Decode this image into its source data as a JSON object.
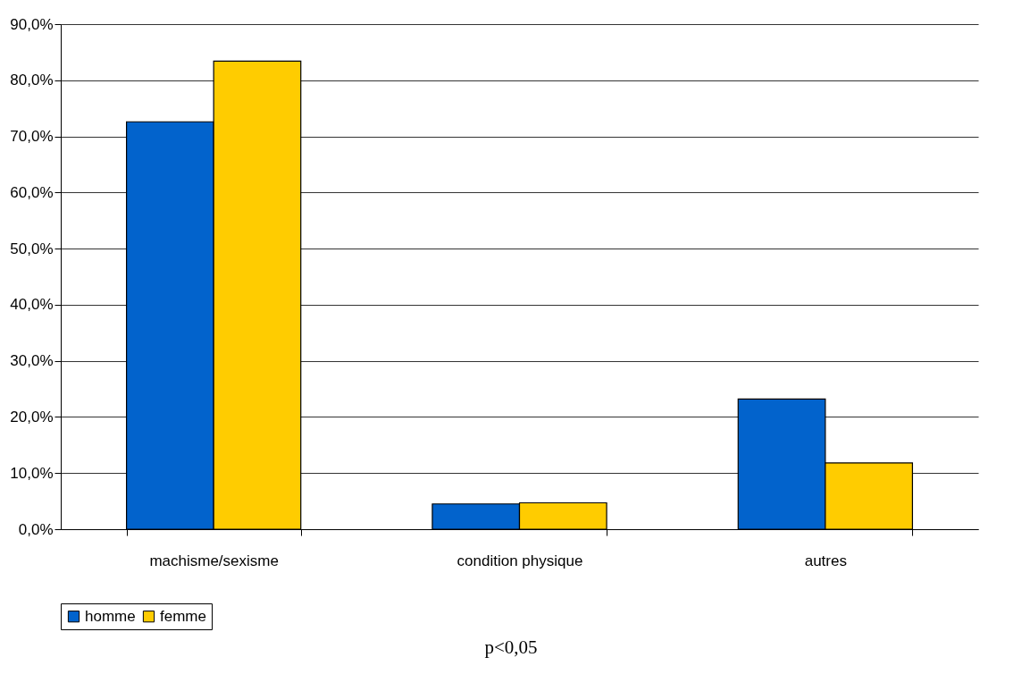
{
  "chart_data": {
    "type": "bar",
    "categories": [
      "machisme/sexisme",
      "condition physique",
      "autres"
    ],
    "series": [
      {
        "name": "homme",
        "color": "#0263cc",
        "values": [
          72.6,
          4.5,
          23.2
        ]
      },
      {
        "name": "femme",
        "color": "#ffcc00",
        "values": [
          83.4,
          4.7,
          11.8
        ]
      }
    ],
    "ylim": [
      0,
      90
    ],
    "yticks": [
      {
        "value": 0,
        "label": "0,0%"
      },
      {
        "value": 10,
        "label": "10,0%"
      },
      {
        "value": 20,
        "label": "20,0%"
      },
      {
        "value": 30,
        "label": "30,0%"
      },
      {
        "value": 40,
        "label": "40,0%"
      },
      {
        "value": 50,
        "label": "50,0%"
      },
      {
        "value": 60,
        "label": "60,0%"
      },
      {
        "value": 70,
        "label": "70,0%"
      },
      {
        "value": 80,
        "label": "80,0%"
      },
      {
        "value": 90,
        "label": "90,0%"
      }
    ],
    "grid": "y",
    "legend": "bottom",
    "annotations": [
      "p<0,05"
    ]
  }
}
